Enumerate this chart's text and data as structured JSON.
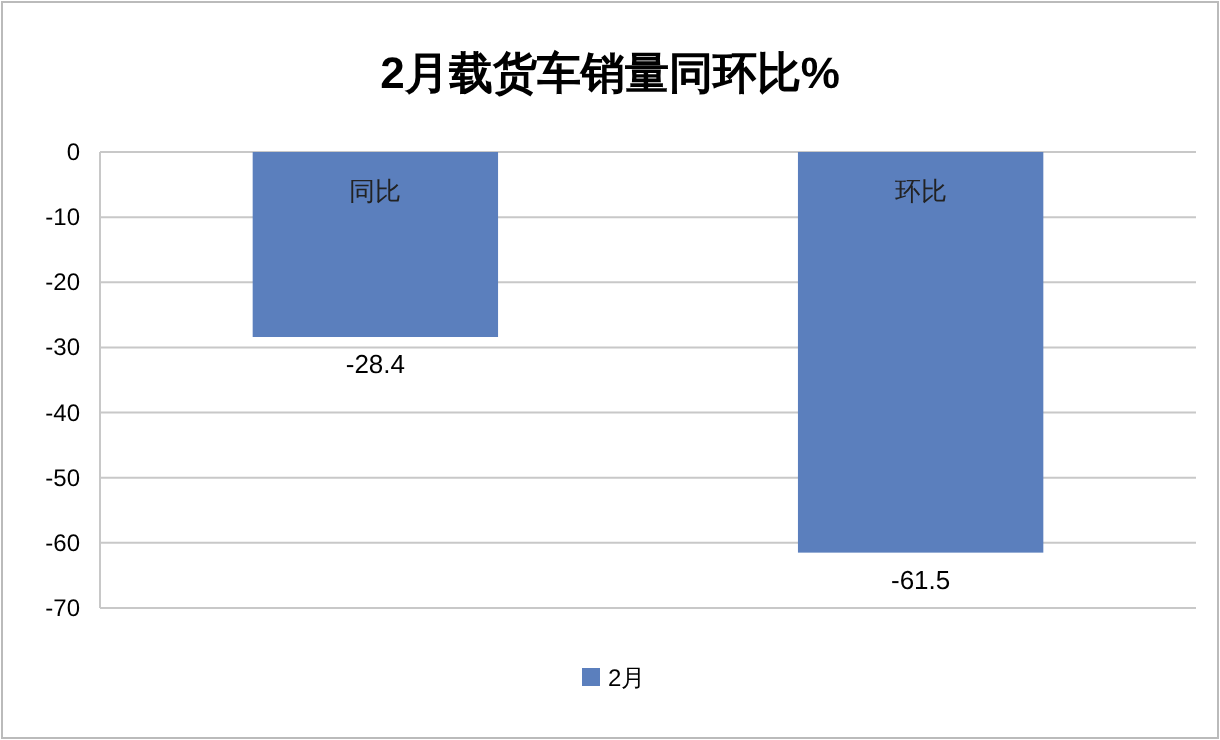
{
  "chart_data": {
    "type": "bar",
    "title": "2月载货车销量同环比%",
    "categories": [
      "同比",
      "环比"
    ],
    "series": [
      {
        "name": "2月",
        "color": "#5b7fbd",
        "values": [
          -28.4,
          -61.5
        ]
      }
    ],
    "ylim": [
      -70,
      0
    ],
    "yticks": [
      0,
      -10,
      -20,
      -30,
      -40,
      -50,
      -60,
      -70
    ],
    "grid": "y",
    "legend": "bottom",
    "data_labels": true
  }
}
